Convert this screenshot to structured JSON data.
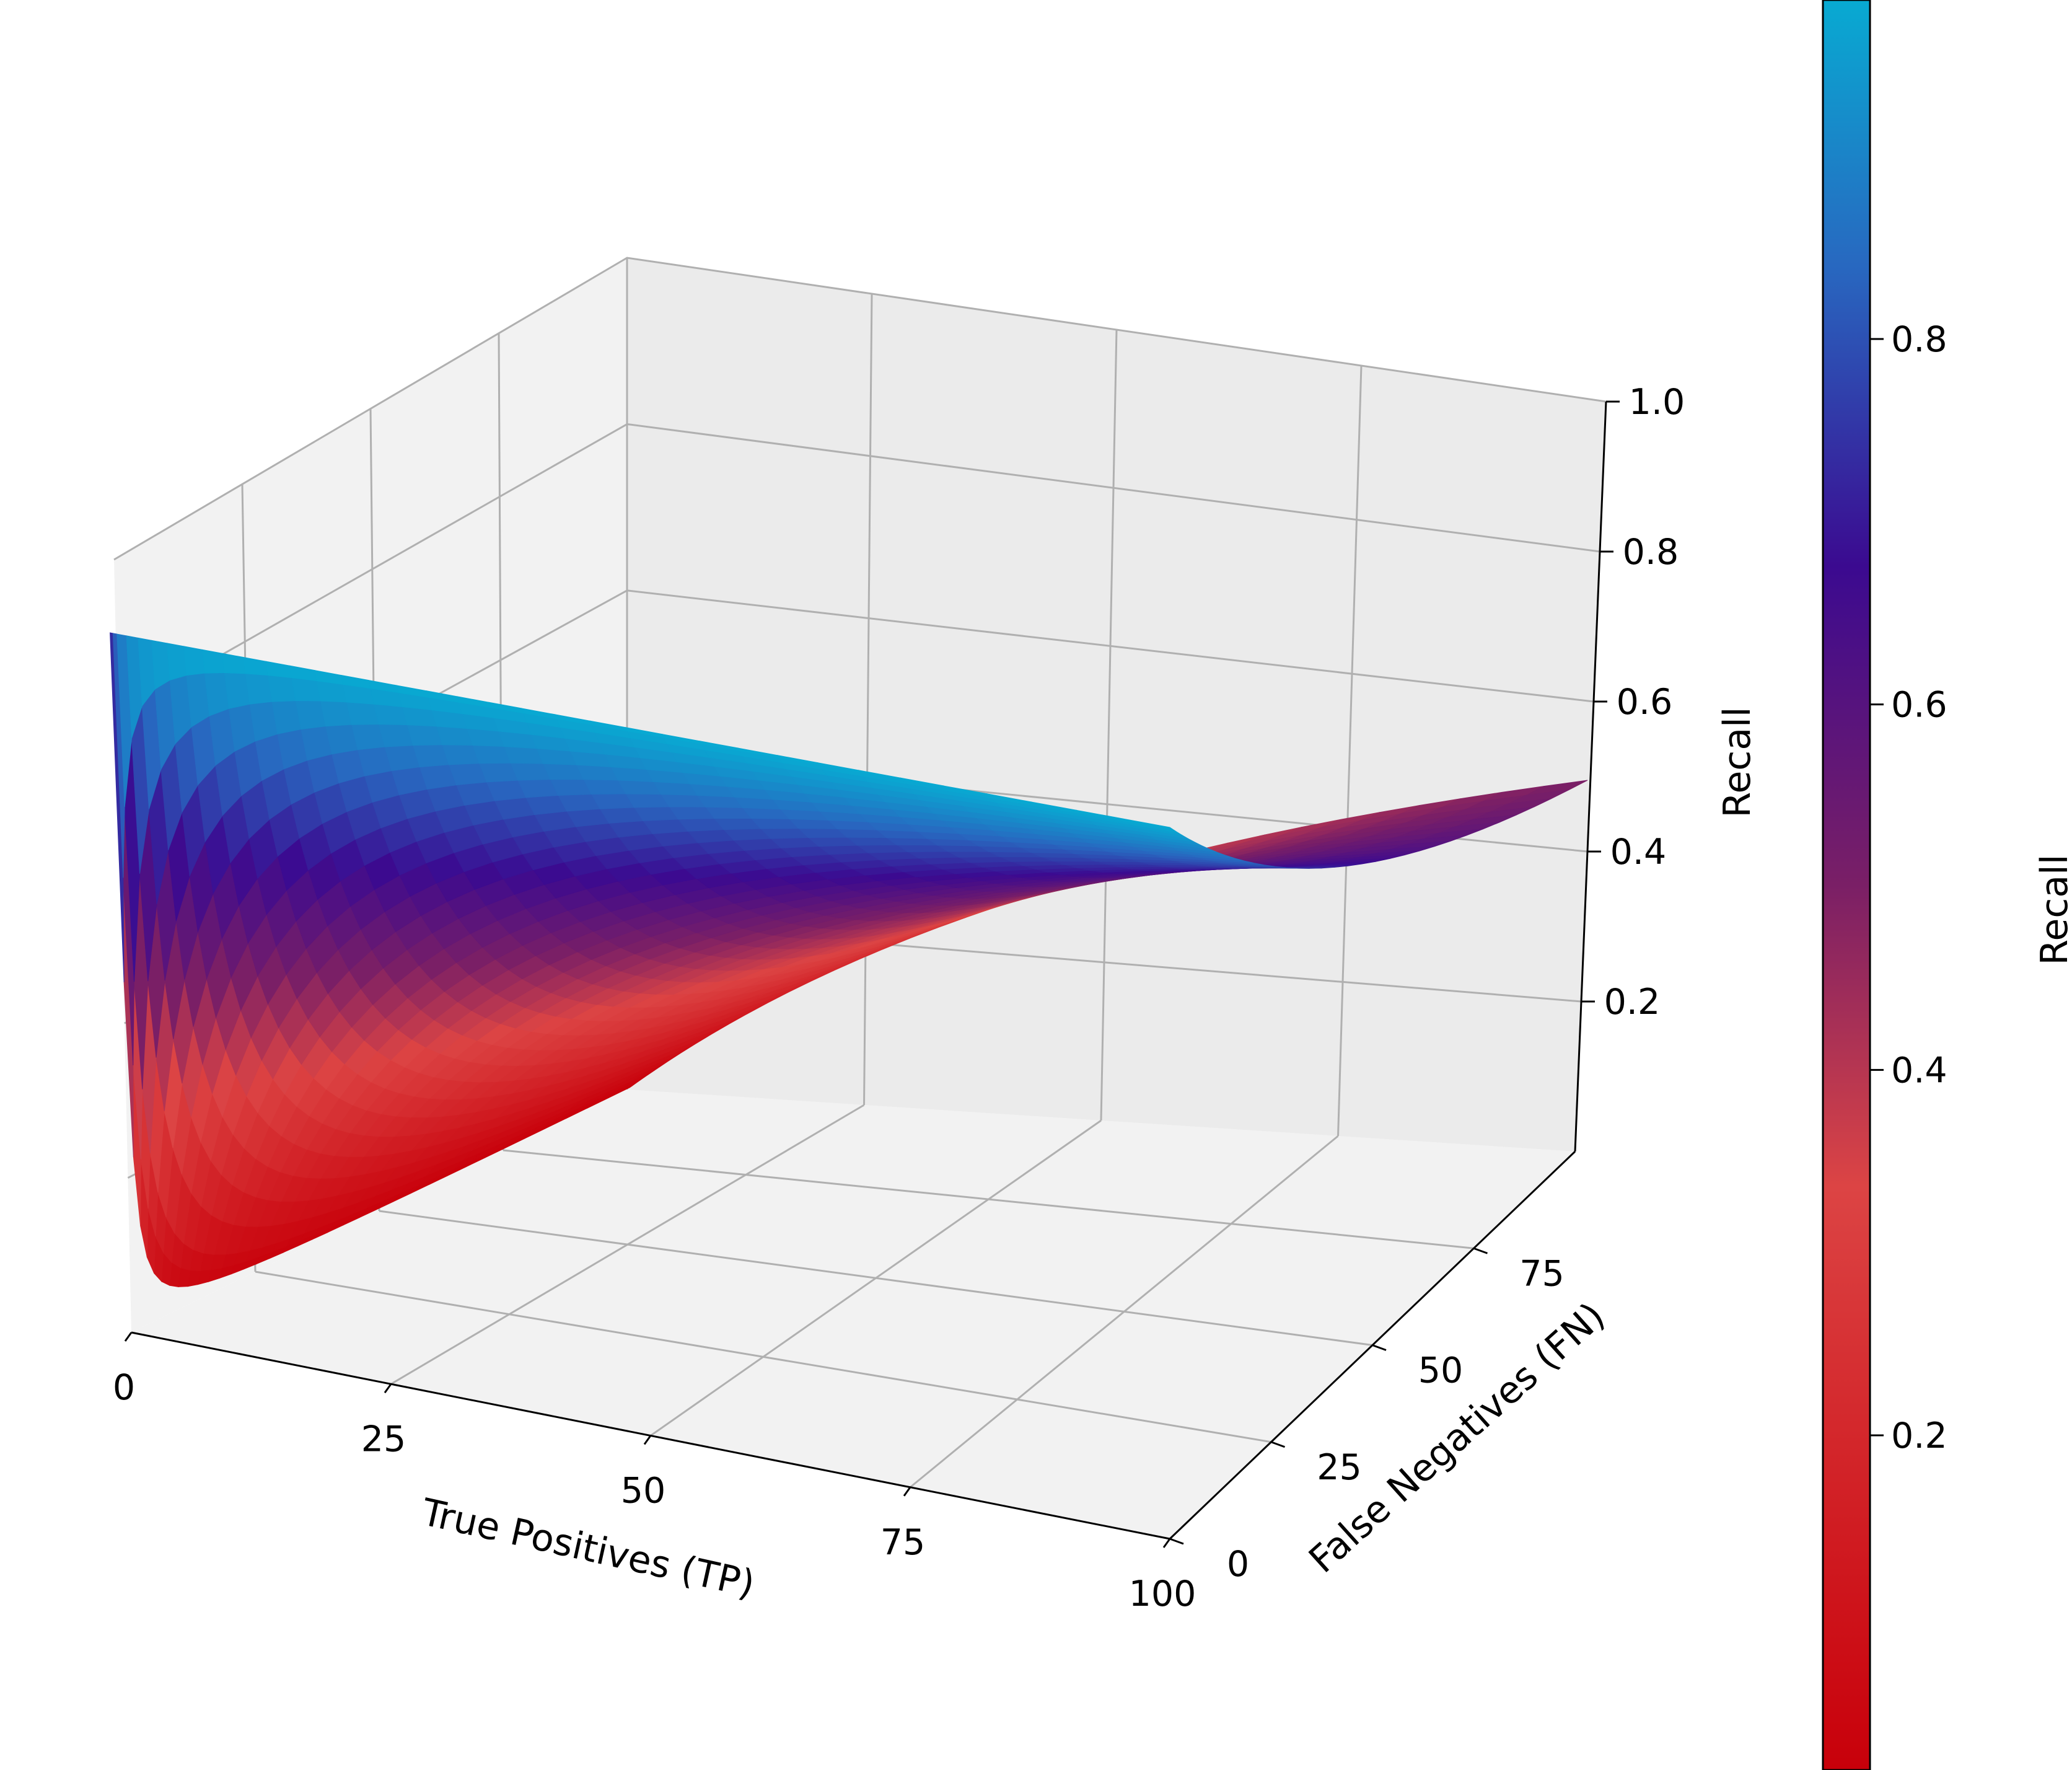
{
  "chart_data": {
    "type": "surface3d",
    "function": "Recall = TP / (TP + FN)",
    "x": {
      "label": "True Positives (TP)",
      "range": [
        0,
        100
      ],
      "ticks": [
        0,
        25,
        50,
        75,
        100
      ],
      "tick_labels": [
        "0",
        "25",
        "50",
        "75",
        "100"
      ]
    },
    "y": {
      "label": "False Negatives (FN)",
      "range": [
        0,
        100
      ],
      "ticks": [
        0,
        25,
        50,
        75
      ],
      "tick_labels": [
        "0",
        "25",
        "50",
        "75"
      ]
    },
    "z": {
      "label": "Recall",
      "range": [
        0,
        1
      ],
      "ticks": [
        0.2,
        0.4,
        0.6,
        0.8,
        1.0
      ],
      "tick_labels": [
        "0.2",
        "0.4",
        "0.6",
        "0.8",
        "1.0"
      ]
    },
    "grid": true,
    "colorbar": {
      "label": "Recall",
      "range": [
        0,
        1
      ],
      "ticks": [
        0.2,
        0.4,
        0.6,
        0.8
      ],
      "tick_labels": [
        "0.2",
        "0.4",
        "0.6",
        "0.8"
      ],
      "colors": [
        {
          "value": 0.0,
          "color": "#c8000a"
        },
        {
          "value": 0.33,
          "color": "#dc4444"
        },
        {
          "value": 0.5,
          "color": "#7a1f66"
        },
        {
          "value": 0.68,
          "color": "#3b0a90"
        },
        {
          "value": 0.85,
          "color": "#2868c0"
        },
        {
          "value": 1.0,
          "color": "#08aad2"
        }
      ]
    }
  }
}
